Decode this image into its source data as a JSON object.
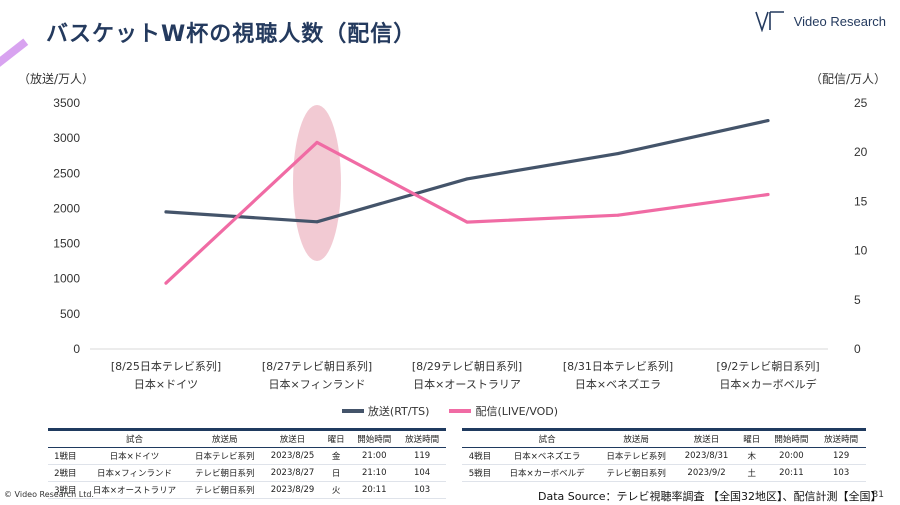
{
  "header": {
    "title": "バスケットW杯の視聴人数（配信）"
  },
  "logo": {
    "text": "Video Research"
  },
  "units": {
    "left": "（放送/万人）",
    "right": "（配信/万人）"
  },
  "chart_data": {
    "type": "line",
    "categories": [
      [
        "[8/25日本テレビ系列]",
        "日本×ドイツ"
      ],
      [
        "[8/27テレビ朝日系列]",
        "日本×フィンランド"
      ],
      [
        "[8/29テレビ朝日系列]",
        "日本×オーストラリア"
      ],
      [
        "[8/31日本テレビ系列]",
        "日本×ベネズエラ"
      ],
      [
        "[9/2テレビ朝日系列]",
        "日本×カーボベルデ"
      ]
    ],
    "y_left": {
      "ticks": [
        "0",
        "500",
        "1000",
        "1500",
        "2000",
        "2500",
        "3000",
        "3500"
      ],
      "min": 0,
      "max": 3500
    },
    "y_right": {
      "ticks": [
        "0",
        "5",
        "10",
        "15",
        "20",
        "25"
      ],
      "min": 0,
      "max": 25
    },
    "series": [
      {
        "name": "放送(RT/TS)",
        "axis": "left",
        "color": "#44546a",
        "values": [
          1950,
          1810,
          2420,
          2780,
          3250
        ]
      },
      {
        "name": "配信(LIVE/VOD)",
        "axis": "right",
        "color": "#f06ba4",
        "values": [
          6.7,
          21.0,
          12.9,
          13.6,
          15.7
        ]
      }
    ],
    "highlight": {
      "category_index": 1,
      "color": "#eeb8c4"
    },
    "grid": false,
    "legend_position": "bottom"
  },
  "tables": {
    "headers": [
      "",
      "試合",
      "放送局",
      "放送日",
      "曜日",
      "開始時間",
      "放送時間"
    ],
    "left_rows": [
      [
        "1戦目",
        "日本×ドイツ",
        "日本テレビ系列",
        "2023/8/25",
        "金",
        "21:00",
        "119"
      ],
      [
        "2戦目",
        "日本×フィンランド",
        "テレビ朝日系列",
        "2023/8/27",
        "日",
        "21:10",
        "104"
      ],
      [
        "3戦目",
        "日本×オーストラリア",
        "テレビ朝日系列",
        "2023/8/29",
        "火",
        "20:11",
        "103"
      ]
    ],
    "right_rows": [
      [
        "4戦目",
        "日本×ベネズエラ",
        "日本テレビ系列",
        "2023/8/31",
        "木",
        "20:00",
        "129"
      ],
      [
        "5戦目",
        "日本×カーボベルデ",
        "テレビ朝日系列",
        "2023/9/2",
        "土",
        "20:11",
        "103"
      ]
    ]
  },
  "footer": {
    "copyright": "© Video Research Ltd.",
    "source": "Data Source：テレビ視聴率調査 【全国32地区】、配信計測【全国】",
    "page": "31"
  }
}
